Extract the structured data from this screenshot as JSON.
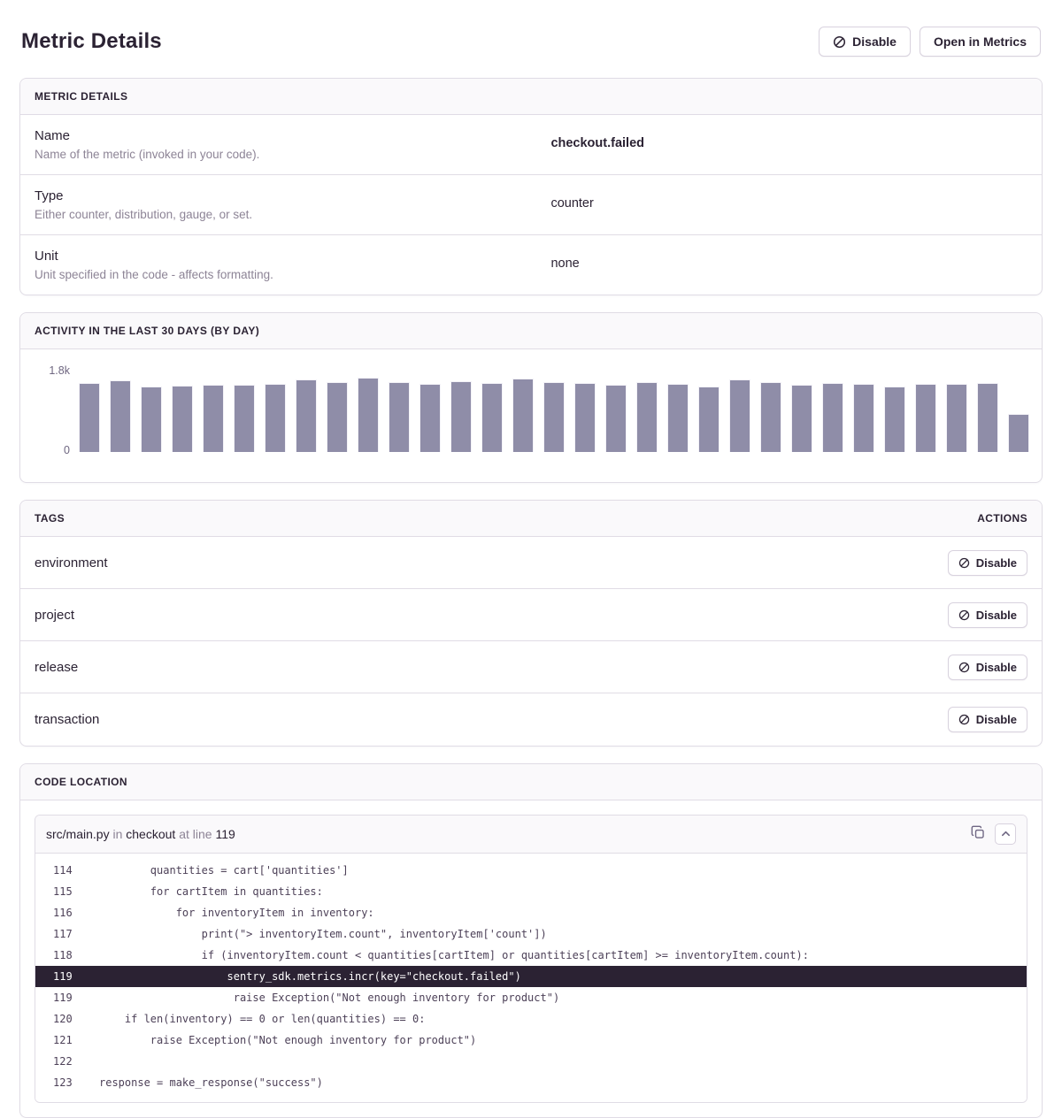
{
  "page": {
    "title": "Metric Details"
  },
  "header": {
    "disable_label": "Disable",
    "open_in_metrics_label": "Open in Metrics"
  },
  "metric_details": {
    "title": "METRIC DETAILS",
    "rows": [
      {
        "label": "Name",
        "description": "Name of the metric (invoked in your code).",
        "value": "checkout.failed",
        "bold": true
      },
      {
        "label": "Type",
        "description": "Either counter, distribution, gauge, or set.",
        "value": "counter",
        "bold": false
      },
      {
        "label": "Unit",
        "description": "Unit specified in the code - affects formatting.",
        "value": "none",
        "bold": false
      }
    ]
  },
  "activity": {
    "title": "ACTIVITY IN THE LAST 30 DAYS (BY DAY)"
  },
  "chart_data": {
    "type": "bar",
    "title": "Activity in the last 30 days (by day)",
    "values": [
      1530,
      1580,
      1450,
      1470,
      1480,
      1490,
      1510,
      1610,
      1550,
      1640,
      1550,
      1510,
      1560,
      1530,
      1630,
      1540,
      1530,
      1490,
      1550,
      1500,
      1450,
      1610,
      1550,
      1480,
      1530,
      1510,
      1450,
      1510,
      1510,
      1530,
      840
    ],
    "ylim": [
      0,
      1800
    ],
    "ytick_labels": [
      "1.8k",
      "0"
    ],
    "xlabel": "",
    "ylabel": "",
    "x_tick_labels": [],
    "legend": "none",
    "grid": false,
    "bar_color": "#8f8da8"
  },
  "tags": {
    "title": "TAGS",
    "actions_label": "ACTIONS",
    "disable_label": "Disable",
    "rows": [
      "environment",
      "project",
      "release",
      "transaction"
    ]
  },
  "code_location": {
    "title": "CODE LOCATION",
    "frame_header": {
      "file": "src/main.py",
      "in_word": "in",
      "function": "checkout",
      "at_line_word": "at line",
      "line": "119"
    },
    "lines": [
      {
        "no": "114",
        "code": "        quantities = cart['quantities']",
        "highlight": false
      },
      {
        "no": "115",
        "code": "        for cartItem in quantities:",
        "highlight": false
      },
      {
        "no": "116",
        "code": "            for inventoryItem in inventory:",
        "highlight": false
      },
      {
        "no": "117",
        "code": "                print(\"> inventoryItem.count\", inventoryItem['count'])",
        "highlight": false
      },
      {
        "no": "118",
        "code": "                if (inventoryItem.count < quantities[cartItem] or quantities[cartItem] >= inventoryItem.count):",
        "highlight": false
      },
      {
        "no": "119",
        "code": "                    sentry_sdk.metrics.incr(key=\"checkout.failed\")",
        "highlight": true
      },
      {
        "no": "119",
        "code": "                     raise Exception(\"Not enough inventory for product\")",
        "highlight": false
      },
      {
        "no": "120",
        "code": "    if len(inventory) == 0 or len(quantities) == 0:",
        "highlight": false
      },
      {
        "no": "121",
        "code": "        raise Exception(\"Not enough inventory for product\")",
        "highlight": false
      },
      {
        "no": "122",
        "code": "",
        "highlight": false
      },
      {
        "no": "123",
        "code": "response = make_response(\"success\")",
        "highlight": false
      }
    ]
  },
  "colors": {
    "text_dark": "#2b2233",
    "text_gray": "#8d8496",
    "border": "#e0dce5",
    "panel_header_bg": "#faf9fb",
    "bar_fill": "#8f8da8",
    "highlight_line_bg": "#2b2233",
    "code_text": "#4d4158"
  }
}
